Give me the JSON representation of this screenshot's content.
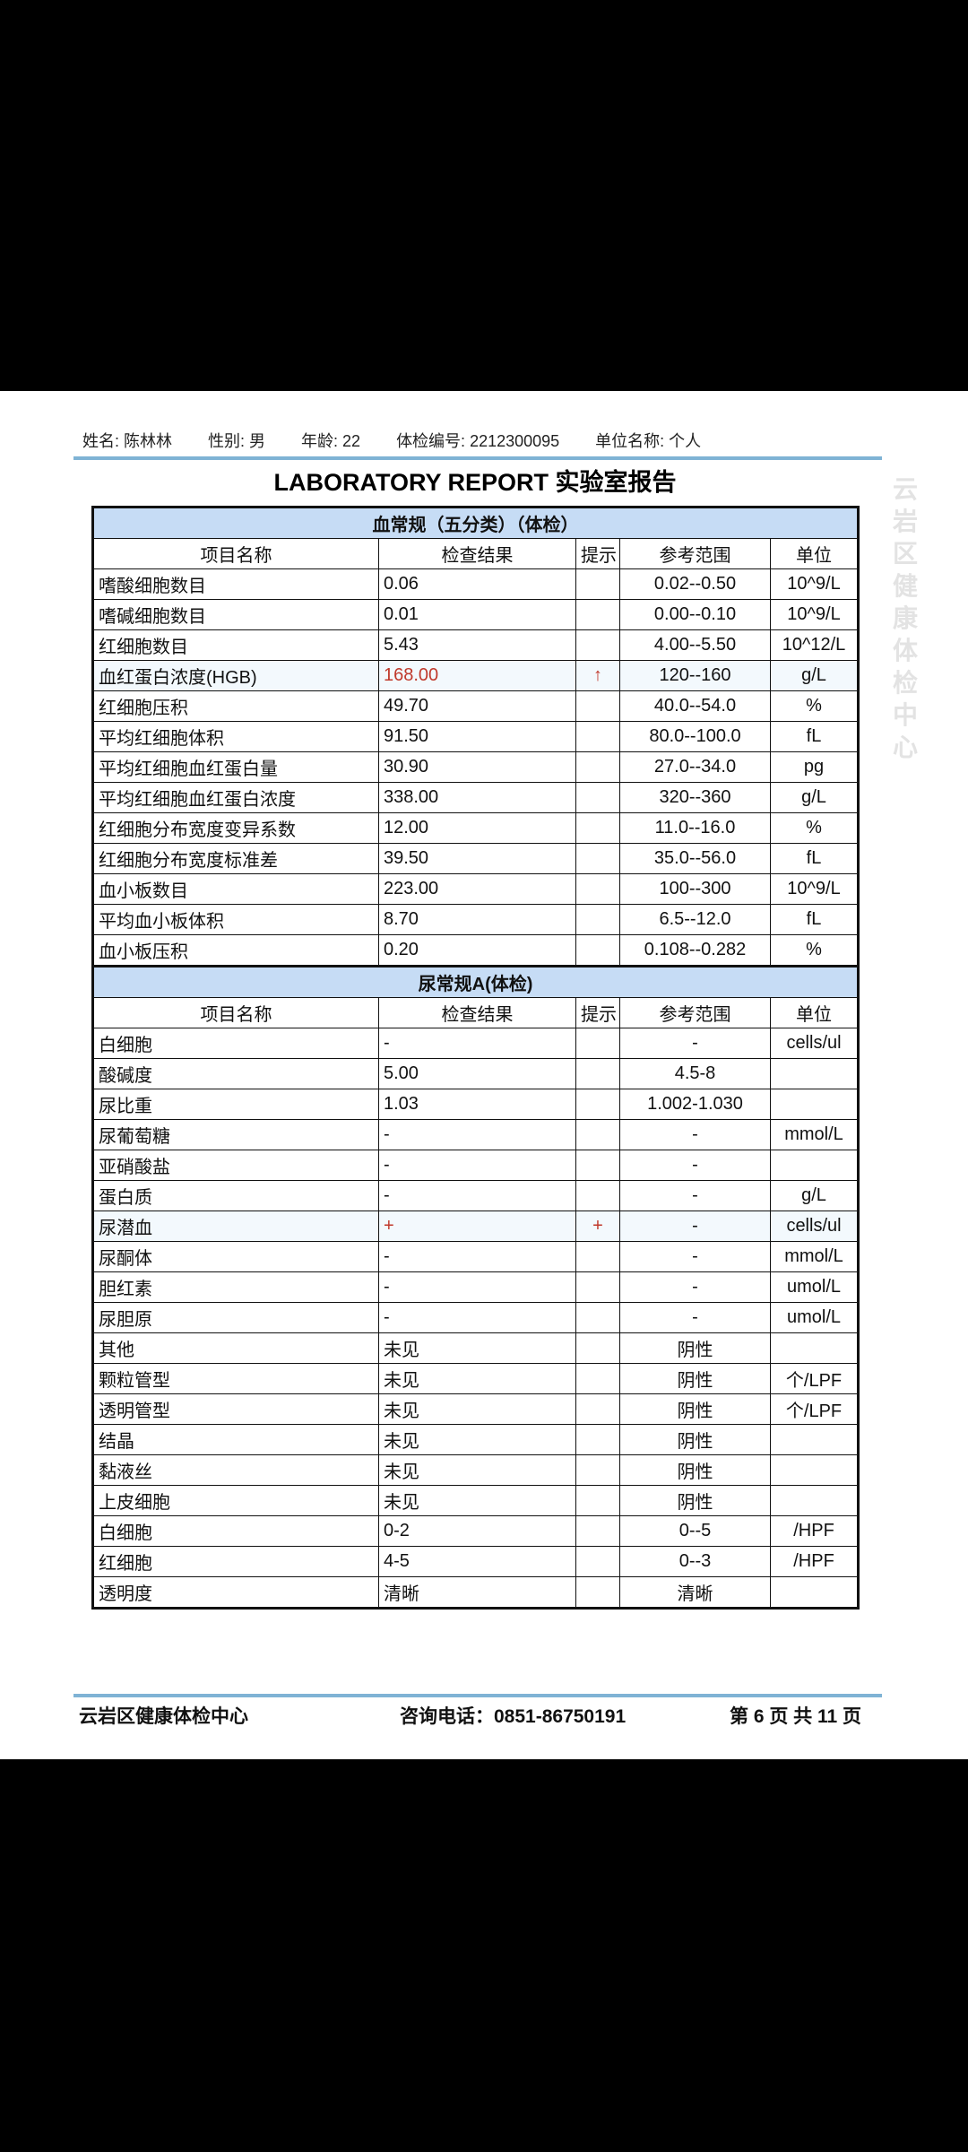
{
  "header": {
    "fields": [
      "姓名: 陈林林",
      "性别: 男",
      "年龄: 22",
      "体检编号: 2212300095",
      "单位名称: 个人"
    ]
  },
  "title": "LABORATORY REPORT 实验室报告",
  "watermark": "云岩区健康体检中心",
  "sections": [
    {
      "title": "血常规（五分类）（体检）",
      "columns": [
        "项目名称",
        "检查结果",
        "提示",
        "参考范围",
        "单位"
      ],
      "rows": [
        [
          "嗜酸细胞数目",
          "0.06",
          null,
          "0.02--0.50",
          "10^9/L"
        ],
        [
          "嗜碱细胞数目",
          "0.01",
          null,
          "0.00--0.10",
          "10^9/L"
        ],
        [
          "红细胞数目",
          "5.43",
          null,
          "4.00--5.50",
          "10^12/L"
        ],
        [
          "血红蛋白浓度(HGB)",
          "168.00",
          "↑",
          "120--160",
          "g/L"
        ],
        [
          "红细胞压积",
          "49.70",
          null,
          "40.0--54.0",
          "%"
        ],
        [
          "平均红细胞体积",
          "91.50",
          null,
          "80.0--100.0",
          "fL"
        ],
        [
          "平均红细胞血红蛋白量",
          "30.90",
          null,
          "27.0--34.0",
          "pg"
        ],
        [
          "平均红细胞血红蛋白浓度",
          "338.00",
          null,
          "320--360",
          "g/L"
        ],
        [
          "红细胞分布宽度变异系数",
          "12.00",
          null,
          "11.0--16.0",
          "%"
        ],
        [
          "红细胞分布宽度标准差",
          "39.50",
          null,
          "35.0--56.0",
          "fL"
        ],
        [
          "血小板数目",
          "223.00",
          null,
          "100--300",
          "10^9/L"
        ],
        [
          "平均血小板体积",
          "8.70",
          null,
          "6.5--12.0",
          "fL"
        ],
        [
          "血小板压积",
          "0.20",
          null,
          "0.108--0.282",
          "%"
        ]
      ]
    },
    {
      "title": "尿常规A(体检)",
      "columns": [
        "项目名称",
        "检查结果",
        "提示",
        "参考范围",
        "单位"
      ],
      "rows": [
        [
          "白细胞",
          "-",
          null,
          "-",
          "cells/ul"
        ],
        [
          "酸碱度",
          "5.00",
          null,
          "4.5-8",
          null
        ],
        [
          "尿比重",
          "1.03",
          null,
          "1.002-1.030",
          null
        ],
        [
          "尿葡萄糖",
          "-",
          null,
          "-",
          "mmol/L"
        ],
        [
          "亚硝酸盐",
          "-",
          null,
          "-",
          null
        ],
        [
          "蛋白质",
          "-",
          null,
          "-",
          "g/L"
        ],
        [
          "尿潜血",
          "+",
          "+",
          "-",
          "cells/ul"
        ],
        [
          "尿酮体",
          "-",
          null,
          "-",
          "mmol/L"
        ],
        [
          "胆红素",
          "-",
          null,
          "-",
          "umol/L"
        ],
        [
          "尿胆原",
          "-",
          null,
          "-",
          "umol/L"
        ],
        [
          "其他",
          "未见",
          null,
          "阴性",
          null
        ],
        [
          "颗粒管型",
          "未见",
          null,
          "阴性",
          "个/LPF"
        ],
        [
          "透明管型",
          "未见",
          null,
          "阴性",
          "个/LPF"
        ],
        [
          "结晶",
          "未见",
          null,
          "阴性",
          null
        ],
        [
          "黏液丝",
          "未见",
          null,
          "阴性",
          null
        ],
        [
          "上皮细胞",
          "未见",
          null,
          "阴性",
          null
        ],
        [
          "白细胞",
          "0-2",
          null,
          "0--5",
          "/HPF"
        ],
        [
          "红细胞",
          "4-5",
          null,
          "0--3",
          "/HPF"
        ],
        [
          "透明度",
          "清晰",
          null,
          "清晰",
          null
        ]
      ]
    }
  ],
  "footer": {
    "left": "云岩区健康体检中心",
    "middle": "咨询电话：0851-86750191",
    "right": "第 6 页 共 11 页"
  }
}
